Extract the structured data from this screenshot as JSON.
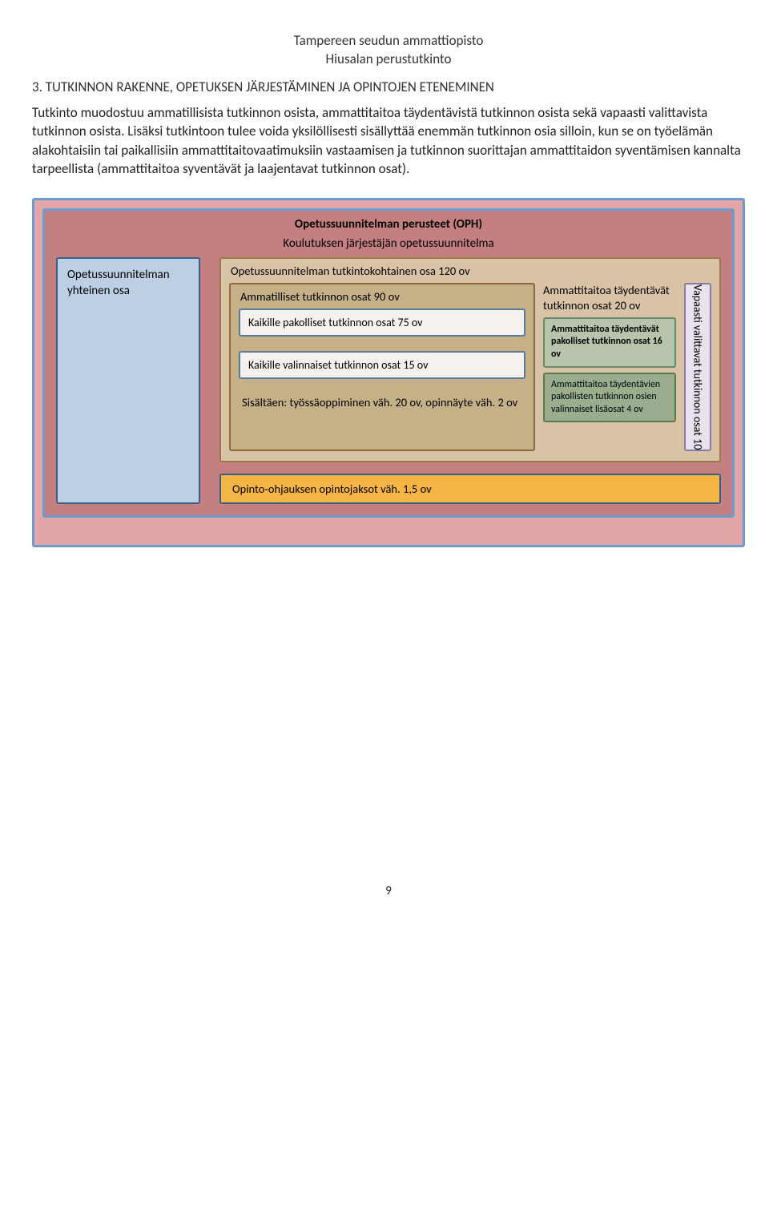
{
  "header": {
    "line1": "Tampereen seudun ammattiopisto",
    "line2": "Hiusalan perustutkinto"
  },
  "section_heading": "3. TUTKINNON RAKENNE, OPETUKSEN JÄRJESTÄMINEN JA OPINTOJEN ETENEMINEN",
  "body_text": "Tutkinto muodostuu ammatillisista tutkinnon osista, ammattitaitoa täydentävistä tutkinnon osista sekä vapaasti valittavista tutkinnon osista. Lisäksi tutkintoon tulee voida yksilöllisesti sisällyttää enemmän tutkinnon osia silloin, kun se on työelämän alakohtaisiin tai paikallisiin ammattitaitovaatimuksiin vastaamisen ja tutkinnon suorittajan ammattitaidon syventämisen kannalta tarpeellista (ammattitaitoa syventävät ja laajentavat tutkinnon osat).",
  "diagram": {
    "oph_title": "Opetussuunnitelman perusteet (OPH)",
    "jarj_title": "Koulutuksen järjestäjän opetussuunnitelma",
    "left_col": "Opetussuunnitelman yhteinen osa",
    "tut_kohtainen_title": "Opetussuunnitelman tutkintokohtainen osa 120 ov",
    "ammat_title": "Ammatilliset tutkinnon osat 90 ov",
    "pakolliset": "Kaikille pakolliset tutkinnon osat 75 ov",
    "valinnaiset": "Kaikille valinnaiset tutkinnon osat 15 ov",
    "sisaltaen": "Sisältäen: työssäoppiminen väh. 20 ov, opinnäyte väh. 2 ov",
    "tayd_title": "Ammattitaitoa täydentävät tutkinnon osat 20 ov",
    "tayd_sub1": "Ammattitaitoa täydentävät pakolliset tutkinnon osat 16 ov",
    "tayd_sub2": "Ammattitaitoa täydentävien pakollisten tutkinnon osien valinnaiset lisäosat 4 ov",
    "vapaa": "Vapaasti valittavat tutkinnon osat 10",
    "opinto": "Opinto-ohjauksen opintojaksot väh. 1,5 ov"
  },
  "page_number": "9",
  "colors": {
    "outer_bg": "#e2a6a6",
    "outer_border": "#6b9bd1",
    "inner_bg": "#c48080",
    "inner_border": "#6b9bd1",
    "left_bg": "#bdcfe3",
    "left_border": "#3a5e8a",
    "tut_bg": "#d8c3a6",
    "tut_border": "#9a7a4a",
    "ammat_bg": "#c5b088",
    "ammat_border": "#8a6a3a",
    "box_bg": "#f5f2ed",
    "box_border": "#5a7a9a",
    "tayd_bg": "#8aa98a",
    "tayd_sub1_bg": "#b5c4ab",
    "tayd_sub1_border": "#6a8a6a",
    "tayd_sub2_bg": "#9aae8f",
    "tayd_sub2_border": "#5a7a4a",
    "vapaa_bg": "#e8e2ed",
    "vapaa_border": "#8a7aa0",
    "opinto_bg": "#f5b544",
    "opinto_border": "#3a5e8a"
  }
}
